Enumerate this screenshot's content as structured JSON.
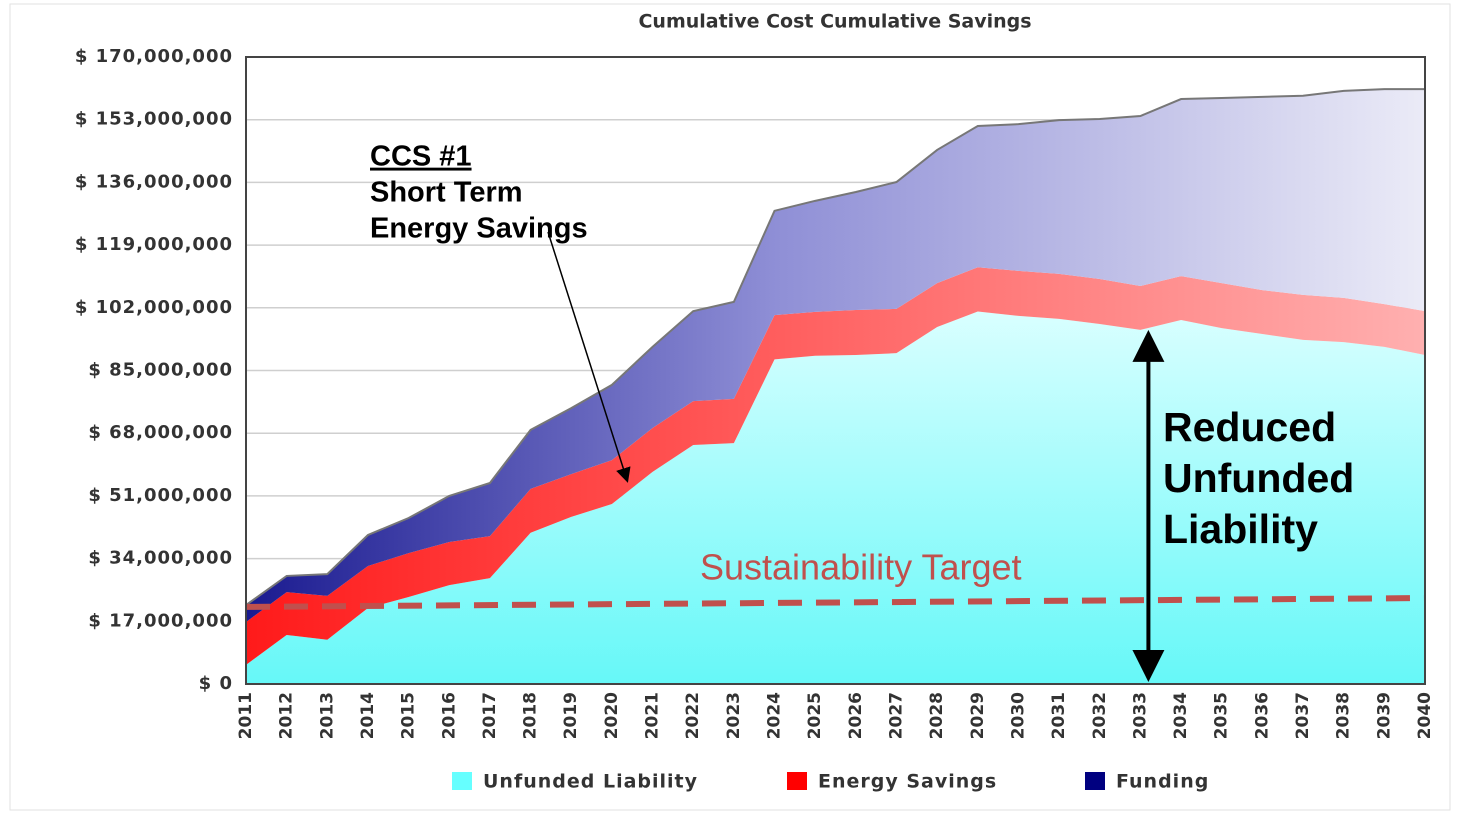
{
  "chart_data": {
    "type": "stacked_area",
    "title": "Cumulative Cost Cumulative Savings",
    "categories": [
      "2011",
      "2012",
      "2013",
      "2014",
      "2015",
      "2016",
      "2017",
      "2018",
      "2019",
      "2020",
      "2021",
      "2022",
      "2023",
      "2024",
      "2025",
      "2026",
      "2027",
      "2028",
      "2029",
      "2030",
      "2031",
      "2032",
      "2033",
      "2034",
      "2035",
      "2036",
      "2037",
      "2038",
      "2039",
      "2040"
    ],
    "series": [
      {
        "name": "Unfunded Liability",
        "color": "#66ffff",
        "values": [
          5200000,
          13300000,
          12000000,
          20600000,
          23600000,
          26800000,
          28700000,
          41000000,
          45300000,
          48800000,
          57500000,
          64800000,
          65300000,
          88000000,
          89000000,
          89200000,
          89700000,
          96800000,
          101000000,
          99800000,
          99000000,
          97600000,
          96000000,
          98700000,
          96500000,
          94900000,
          93300000,
          92700000,
          91400000,
          89200000
        ]
      },
      {
        "name": "Energy Savings",
        "color": "#ff0000",
        "values": [
          11600000,
          11600000,
          11900000,
          11400000,
          11900000,
          11700000,
          11400000,
          11900000,
          11600000,
          11900000,
          11900000,
          11900000,
          12000000,
          12000000,
          11900000,
          12200000,
          12000000,
          11900000,
          12000000,
          12200000,
          12200000,
          12200000,
          11900000,
          11900000,
          12200000,
          11900000,
          12200000,
          12000000,
          11600000,
          11900000
        ]
      },
      {
        "name": "Funding",
        "color": "#000080",
        "values": [
          4600000,
          4400000,
          5900000,
          8400000,
          9500000,
          12500000,
          14400000,
          16000000,
          17900000,
          20400000,
          22000000,
          24400000,
          26300000,
          28300000,
          30100000,
          32000000,
          34400000,
          36100000,
          38300000,
          39800000,
          41700000,
          43400000,
          46100000,
          48000000,
          50200000,
          52400000,
          54000000,
          56100000,
          58300000,
          60200000
        ]
      }
    ],
    "ylim": [
      0,
      170000000
    ],
    "yticks": [
      {
        "value": 0,
        "label": "$ 0"
      },
      {
        "value": 17000000,
        "label": "$ 17,000,000"
      },
      {
        "value": 34000000,
        "label": "$ 34,000,000"
      },
      {
        "value": 51000000,
        "label": "$ 51,000,000"
      },
      {
        "value": 68000000,
        "label": "$ 68,000,000"
      },
      {
        "value": 85000000,
        "label": "$ 85,000,000"
      },
      {
        "value": 102000000,
        "label": "$ 102,000,000"
      },
      {
        "value": 119000000,
        "label": "$ 119,000,000"
      },
      {
        "value": 136000000,
        "label": "$ 136,000,000"
      },
      {
        "value": 153000000,
        "label": "$ 153,000,000"
      },
      {
        "value": 170000000,
        "label": "$ 170,000,000"
      }
    ],
    "grid": true,
    "legend": "bottom",
    "target": {
      "label": "Sustainability Target",
      "start": 20900000,
      "end": 23300000,
      "color": "#c0504d"
    },
    "annotations": {
      "ccs": [
        "CCS #1",
        "Short Term",
        "Energy Savings"
      ],
      "reduced": [
        "Reduced",
        "Unfunded",
        "Liability"
      ]
    }
  }
}
